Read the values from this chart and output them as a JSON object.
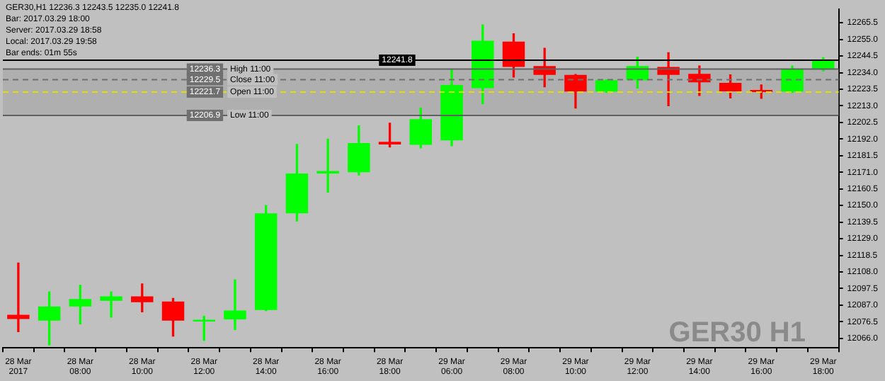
{
  "chart_data": {
    "type": "candlestick",
    "title": "GER30,H1  12236.3 12243.5 12235.0 12241.8",
    "annotations": [
      "Bar: 2017.03.29 18:00",
      "Server: 2017.03.29 18:58",
      "Local: 2017.03.29 19:58",
      "Bar ends: 01m 55s",
      "GER30 H1"
    ],
    "categories": [
      "28 Mar 2017",
      null,
      "28 Mar 08:00",
      null,
      "28 Mar 10:00",
      null,
      "28 Mar 12:00",
      null,
      "28 Mar 14:00",
      null,
      "28 Mar 16:00",
      null,
      "28 Mar 18:00",
      null,
      "29 Mar 06:00",
      null,
      "29 Mar 08:00",
      null,
      "29 Mar 10:00",
      null,
      "29 Mar 12:00",
      null,
      "29 Mar 14:00",
      null,
      "29 Mar 16:00",
      null,
      "29 Mar 18:00"
    ],
    "ohlc": [
      [
        12080.9,
        12113.6,
        12070.2,
        12078.2
      ],
      [
        12077.2,
        12095.4,
        12061.8,
        12086.2
      ],
      [
        12086.2,
        12099.6,
        12075.2,
        12090.9
      ],
      [
        12089.8,
        12095.4,
        12079.4,
        12092.6
      ],
      [
        12092.6,
        12100.4,
        12082.8,
        12088.9
      ],
      [
        12089.3,
        12091.2,
        12067.4,
        12077.2
      ],
      [
        12076.7,
        12080.0,
        12064.6,
        12077.8
      ],
      [
        12078.0,
        12103.0,
        12071.6,
        12083.6
      ],
      [
        12083.9,
        12150.0,
        12083.5,
        12145.0
      ],
      [
        12145.0,
        12188.6,
        12140.2,
        12170.2
      ],
      [
        12170.2,
        12192.0,
        12158.4,
        12171.8
      ],
      [
        12171.0,
        12200.4,
        12169.3,
        12189.5
      ],
      [
        12190.3,
        12202.0,
        12187.0,
        12188.6
      ],
      [
        12188.4,
        12211.6,
        12186.4,
        12204.6
      ],
      [
        12191.2,
        12235.6,
        12187.8,
        12226.2
      ],
      [
        12224.2,
        12264.2,
        12214.4,
        12254.2
      ],
      [
        12253.6,
        12258.6,
        12231.2,
        12237.6
      ],
      [
        12238.2,
        12249.4,
        12225.0,
        12232.6
      ],
      [
        12232.6,
        12232.8,
        12211.6,
        12222.0
      ],
      [
        12222.0,
        12229.5,
        12221.5,
        12229.2
      ],
      [
        12229.2,
        12243.8,
        12224.2,
        12238.2
      ],
      [
        12237.6,
        12246.6,
        12213.0,
        12232.6
      ],
      [
        12233.2,
        12238.2,
        12219.5,
        12227.9
      ],
      [
        12227.5,
        12232.6,
        12218.0,
        12222.2
      ],
      [
        12223.1,
        12226.2,
        12217.8,
        12221.7
      ],
      [
        12222.0,
        12238.2,
        12221.5,
        12236.3
      ],
      [
        12236.3,
        12243.5,
        12235.0,
        12241.8
      ]
    ],
    "colors": [
      "#ff0000",
      "#00ff00",
      "#00ff00",
      "#00ff00",
      "#ff0000",
      "#ff0000",
      "#00ff00",
      "#00ff00",
      "#00ff00",
      "#00ff00",
      "#00ff00",
      "#00ff00",
      "#ff0000",
      "#00ff00",
      "#00ff00",
      "#00ff00",
      "#ff0000",
      "#ff0000",
      "#ff0000",
      "#00ff00",
      "#00ff00",
      "#ff0000",
      "#ff0000",
      "#ff0000",
      "#ff0000",
      "#00ff00",
      "#00ff00"
    ],
    "ylim": [
      12060,
      12274
    ],
    "yticks": [
      {
        "value": 12066,
        "label": "12066.0"
      },
      {
        "value": 12076.5,
        "label": "12076.5"
      },
      {
        "value": 12087,
        "label": "12087.0"
      },
      {
        "value": 12097.5,
        "label": "12097.5"
      },
      {
        "value": 12108,
        "label": "12108.0"
      },
      {
        "value": 12118.5,
        "label": "12118.5"
      },
      {
        "value": 12129,
        "label": "12129.0"
      },
      {
        "value": 12139.5,
        "label": "12139.5"
      },
      {
        "value": 12150,
        "label": "12150.0"
      },
      {
        "value": 12160.5,
        "label": "12160.5"
      },
      {
        "value": 12171,
        "label": "12171.0"
      },
      {
        "value": 12181.5,
        "label": "12181.5"
      },
      {
        "value": 12192,
        "label": "12192.0"
      },
      {
        "value": 12202.5,
        "label": "12202.5"
      },
      {
        "value": 12213,
        "label": "12213.0"
      },
      {
        "value": 12223.5,
        "label": "12223.5"
      },
      {
        "value": 12234,
        "label": "12234.0"
      },
      {
        "value": 12244.5,
        "label": "12244.5"
      },
      {
        "value": 12255,
        "label": "12255.0"
      },
      {
        "value": 12265.5,
        "label": "12265.5"
      }
    ],
    "ref_lines": [
      {
        "axis": "y",
        "value": 12241.8,
        "label": "12241.8",
        "color": "#000000",
        "line_style": "solid"
      },
      {
        "axis": "y",
        "value": 12236.3,
        "label": "12236.3 High 11:00",
        "color": "#606060",
        "line_style": "solid"
      },
      {
        "axis": "y",
        "value": 12229.5,
        "label": "12229.5 Close 11:00",
        "color": "#707070",
        "line_style": "dashed"
      },
      {
        "axis": "y",
        "value": 12221.7,
        "label": "12221.7 Open 11:00",
        "color": "#e0e000",
        "line_style": "dashed"
      },
      {
        "axis": "y",
        "value": 12206.9,
        "label": "12206.9 Low 11:00",
        "color": "#606060",
        "line_style": "solid"
      }
    ],
    "bands": [
      {
        "axis": "y",
        "from": 12206.9,
        "to": 12236.3,
        "color": "#a4a4a4"
      }
    ],
    "grid": false,
    "legend": false
  }
}
